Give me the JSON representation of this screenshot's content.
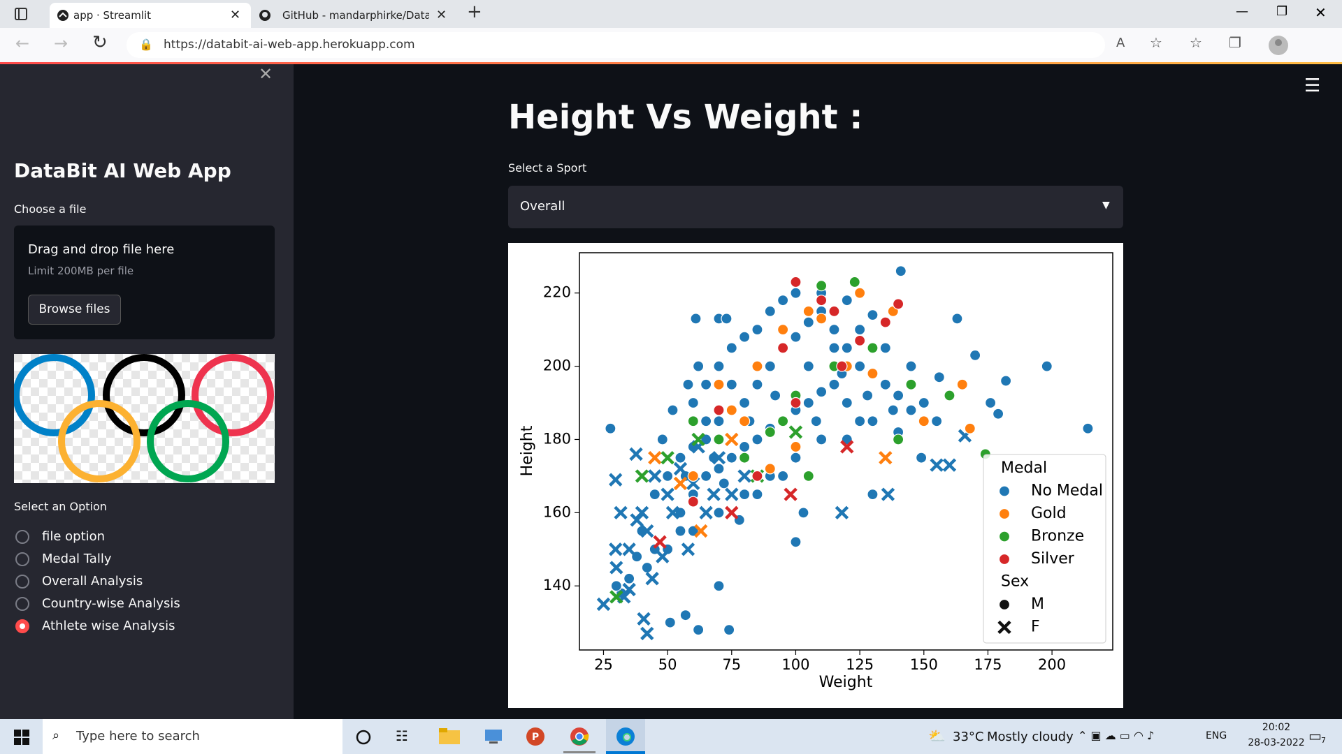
{
  "browser": {
    "tabs": [
      "app · Streamlit",
      "GitHub - mandarphirke/DataBit-"
    ],
    "url": "https://databit-ai-web-app.herokuapp.com"
  },
  "sidebar": {
    "title": "DataBit AI Web App",
    "uploader_label": "Choose a file",
    "dropzone_text": "Drag and drop file here",
    "limit_text": "Limit 200MB per file",
    "button": "Browse files",
    "radio_label": "Select an Option",
    "options": [
      "file option",
      "Medal Tally",
      "Overall Analysis",
      "Country-wise Analysis",
      "Athlete wise Analysis"
    ],
    "selected_option": 4
  },
  "main": {
    "title": "Height Vs Weight :",
    "select_label": "Select a Sport",
    "select_value": "Overall"
  },
  "taskbar": {
    "search": "Type here to search",
    "temperature": "33°C",
    "weather": "Mostly cloudy",
    "language": "ENG",
    "time": "20:02",
    "date": "28-03-2022",
    "notifications": "7"
  },
  "chart_data": {
    "type": "scatter",
    "x_label": "Weight",
    "y_label": "Height",
    "xlim": [
      15.6,
      223.7
    ],
    "ylim": [
      122.5,
      231
    ],
    "xticks": [
      25,
      50,
      75,
      100,
      125,
      150,
      175,
      200
    ],
    "yticks": [
      140,
      160,
      180,
      200,
      220
    ],
    "grid": false,
    "legend": {
      "title": "Medal",
      "position": "lower right"
    },
    "sex_legend": {
      "title": "Sex",
      "items": [
        "M",
        "F"
      ],
      "markers": [
        "circle",
        "x"
      ]
    },
    "series": [
      {
        "name": "No Medal",
        "color": "#1f77b4",
        "x": [
          27.7,
          214,
          198,
          182,
          176,
          179,
          61,
          70,
          73,
          141,
          163,
          100,
          74,
          62,
          70,
          57,
          51,
          130,
          149,
          170,
          156,
          103,
          45,
          50,
          55,
          60,
          65,
          70,
          75,
          80,
          85,
          90,
          95,
          100,
          105,
          110,
          115,
          120,
          125,
          130,
          135,
          140,
          145,
          150,
          155,
          60,
          65,
          70,
          75,
          80,
          85,
          90,
          95,
          100,
          110,
          120,
          130,
          55,
          60,
          65,
          70,
          75,
          80,
          85,
          90,
          95,
          100,
          105,
          110,
          115,
          120,
          125,
          50,
          55,
          60,
          70,
          80,
          90,
          100,
          110,
          120,
          130,
          140,
          45,
          48,
          52,
          58,
          62,
          68,
          72,
          78,
          85,
          95,
          105,
          115,
          125,
          135,
          145,
          108,
          118,
          128,
          138,
          92,
          82,
          75,
          65,
          57,
          40,
          42,
          38,
          35,
          32,
          30,
          25,
          29.7,
          37.7,
          31.7,
          29.7,
          42,
          40.7,
          35,
          118,
          136,
          155,
          160,
          166,
          35,
          40,
          45,
          50,
          55,
          60,
          65,
          70,
          75,
          80,
          42,
          38,
          48,
          52,
          62,
          68,
          58,
          30,
          33,
          44
        ],
        "values": [
          183,
          183,
          200,
          196,
          190,
          187,
          213,
          213,
          213,
          226,
          213,
          152,
          128,
          128,
          140,
          132,
          130,
          165,
          175,
          203,
          197,
          160,
          165,
          170,
          175,
          178,
          180,
          185,
          188,
          190,
          195,
          200,
          205,
          208,
          212,
          215,
          210,
          205,
          200,
          198,
          195,
          192,
          188,
          190,
          185,
          190,
          195,
          200,
          205,
          208,
          210,
          215,
          218,
          220,
          220,
          218,
          214,
          160,
          165,
          170,
          172,
          175,
          178,
          180,
          183,
          185,
          188,
          190,
          193,
          195,
          190,
          185,
          150,
          155,
          155,
          160,
          165,
          170,
          175,
          180,
          180,
          185,
          182,
          150,
          180,
          188,
          195,
          200,
          175,
          168,
          158,
          165,
          170,
          200,
          205,
          210,
          205,
          200,
          185,
          198,
          192,
          188,
          192,
          185,
          195,
          185,
          170,
          155,
          145,
          148,
          142,
          138,
          140,
          135,
          169,
          176,
          160,
          150,
          127,
          131,
          139,
          160,
          165,
          173,
          173,
          181,
          150,
          160,
          170,
          165,
          172,
          168,
          160,
          175,
          165,
          170,
          155,
          158,
          148,
          160,
          178,
          165,
          150,
          145,
          137,
          142
        ],
        "sex": [
          "M",
          "M",
          "M",
          "M",
          "M",
          "M",
          "M",
          "M",
          "M",
          "M",
          "M",
          "M",
          "M",
          "M",
          "M",
          "M",
          "M",
          "M",
          "M",
          "M",
          "M",
          "M",
          "M",
          "M",
          "M",
          "M",
          "M",
          "M",
          "M",
          "M",
          "M",
          "M",
          "M",
          "M",
          "M",
          "M",
          "M",
          "M",
          "M",
          "M",
          "M",
          "M",
          "M",
          "M",
          "M",
          "M",
          "M",
          "M",
          "M",
          "M",
          "M",
          "M",
          "M",
          "M",
          "M",
          "M",
          "M",
          "M",
          "M",
          "M",
          "M",
          "M",
          "M",
          "M",
          "M",
          "M",
          "M",
          "M",
          "M",
          "M",
          "M",
          "M",
          "M",
          "M",
          "M",
          "M",
          "M",
          "M",
          "M",
          "M",
          "M",
          "M",
          "M",
          "M",
          "M",
          "M",
          "M",
          "M",
          "M",
          "M",
          "M",
          "M",
          "M",
          "M",
          "M",
          "M",
          "M",
          "M",
          "M",
          "M",
          "M",
          "M",
          "M",
          "M",
          "M",
          "M",
          "M",
          "M",
          "M",
          "M",
          "M",
          "M",
          "M",
          "F",
          "F",
          "F",
          "F",
          "F",
          "F",
          "F",
          "F",
          "F",
          "F",
          "F",
          "F",
          "F",
          "F",
          "F",
          "F",
          "F",
          "F",
          "F",
          "F",
          "F",
          "F",
          "F",
          "F",
          "F",
          "F",
          "F",
          "F",
          "F",
          "F",
          "F",
          "F",
          "F"
        ]
      },
      {
        "name": "Gold",
        "color": "#ff7f0e",
        "x": [
          70,
          75,
          85,
          95,
          105,
          110,
          120,
          130,
          138,
          150,
          165,
          168,
          100,
          90,
          80,
          60,
          125,
          45,
          55,
          63,
          75,
          135
        ],
        "values": [
          195,
          188,
          200,
          210,
          215,
          213,
          200,
          198,
          215,
          185,
          195,
          183,
          178,
          172,
          185,
          170,
          220,
          175,
          168,
          155,
          180,
          175
        ],
        "sex": [
          "M",
          "M",
          "M",
          "M",
          "M",
          "M",
          "M",
          "M",
          "M",
          "M",
          "M",
          "M",
          "M",
          "M",
          "M",
          "M",
          "M",
          "F",
          "F",
          "F",
          "F",
          "F"
        ]
      },
      {
        "name": "Bronze",
        "color": "#2ca02c",
        "x": [
          110,
          123,
          174,
          95,
          100,
          115,
          130,
          145,
          80,
          90,
          60,
          70,
          105,
          160,
          140,
          40,
          50,
          62,
          30,
          85,
          100
        ],
        "values": [
          222,
          223,
          176,
          185,
          192,
          200,
          205,
          195,
          175,
          182,
          185,
          180,
          170,
          192,
          180,
          170,
          175,
          180,
          137,
          170,
          182
        ],
        "sex": [
          "M",
          "M",
          "M",
          "M",
          "M",
          "M",
          "M",
          "M",
          "M",
          "M",
          "M",
          "M",
          "M",
          "M",
          "M",
          "F",
          "F",
          "F",
          "F",
          "F",
          "F"
        ]
      },
      {
        "name": "Silver",
        "color": "#d62728",
        "x": [
          100,
          110,
          115,
          140,
          135,
          125,
          100,
          85,
          70,
          118,
          60,
          95,
          98,
          120,
          75,
          47
        ],
        "values": [
          223,
          218,
          215,
          217,
          212,
          207,
          190,
          170,
          188,
          200,
          163,
          205,
          165,
          178,
          160,
          152
        ],
        "sex": [
          "M",
          "M",
          "M",
          "M",
          "M",
          "M",
          "M",
          "M",
          "M",
          "M",
          "M",
          "M",
          "F",
          "F",
          "F",
          "F"
        ]
      }
    ]
  }
}
